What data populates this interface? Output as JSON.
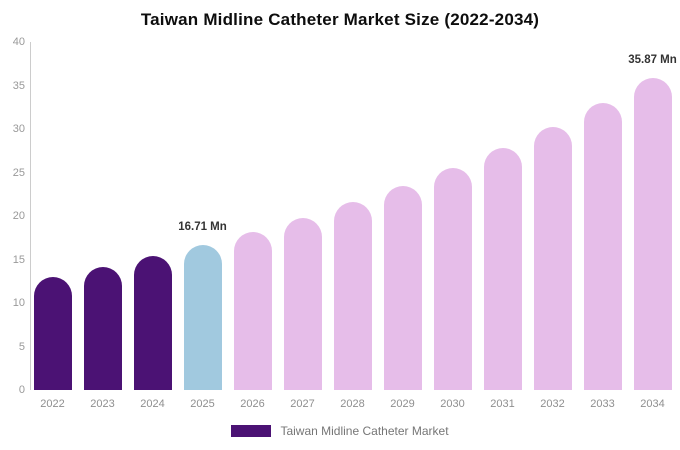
{
  "chart": {
    "title": "Taiwan Midline Catheter Market Size (2022-2034)",
    "legend": {
      "label": "Taiwan Midline Catheter Market",
      "swatch_color": "#4B1274"
    }
  },
  "chart_data": {
    "type": "bar",
    "title": "Taiwan Midline Catheter Market Size (2022-2034)",
    "xlabel": "",
    "ylabel": "",
    "categories": [
      "2022",
      "2023",
      "2024",
      "2025",
      "2026",
      "2027",
      "2028",
      "2029",
      "2030",
      "2031",
      "2032",
      "2033",
      "2034"
    ],
    "values": [
      12.95,
      14.1,
      15.35,
      16.71,
      18.19,
      19.8,
      21.56,
      23.47,
      25.55,
      27.81,
      30.27,
      32.95,
      35.87
    ],
    "unit": "Mn",
    "bar_colors": [
      "#4B1274",
      "#4B1274",
      "#4B1274",
      "#A1C9DF",
      "#E6BDE9",
      "#E6BDE9",
      "#E6BDE9",
      "#E6BDE9",
      "#E6BDE9",
      "#E6BDE9",
      "#E6BDE9",
      "#E6BDE9",
      "#E6BDE9"
    ],
    "annotations": [
      {
        "category": "2025",
        "text": "16.71 Mn"
      },
      {
        "category": "2034",
        "text": "35.87 Mn"
      }
    ],
    "y_ticks": [
      0,
      5,
      10,
      15,
      20,
      25,
      30,
      35,
      40
    ],
    "ylim": [
      0,
      40
    ],
    "grid": false,
    "legend_position": "bottom",
    "legend_entries": [
      "Taiwan Midline Catheter Market"
    ]
  }
}
